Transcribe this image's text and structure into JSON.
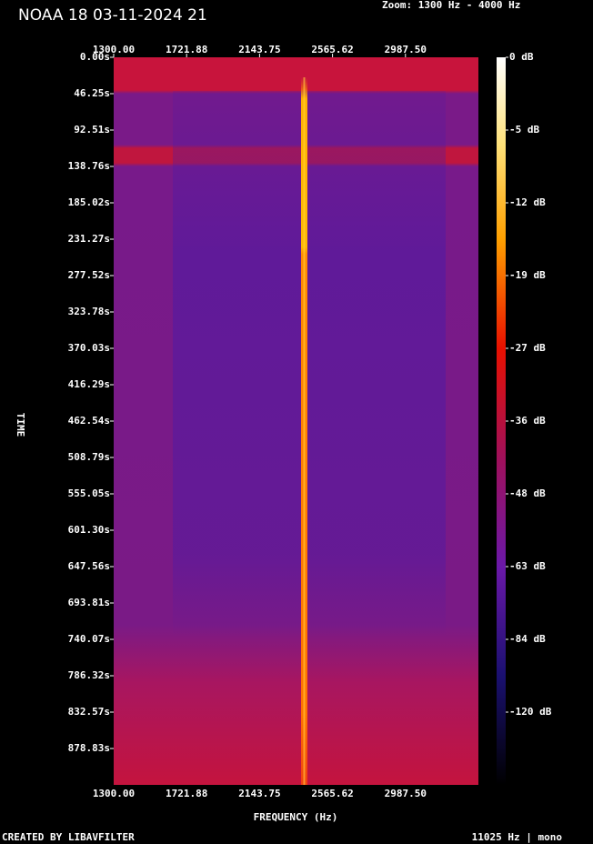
{
  "chart_data": {
    "type": "spectrogram",
    "title": "NOAA 18 03-11-2024 21",
    "subtitle": "Zoom: 1300 Hz - 4000 Hz",
    "x_label": "FREQUENCY (Hz)",
    "y_label": "TIME",
    "footer_left": "CREATED BY LIBAVFILTER",
    "footer_right": "11025 Hz | mono",
    "xlim": [
      1300,
      3409.375
    ],
    "xticks": [
      {
        "value": 1300,
        "label": "1300.00"
      },
      {
        "value": 1721.88,
        "label": "1721.88"
      },
      {
        "value": 2143.75,
        "label": "2143.75"
      },
      {
        "value": 2565.62,
        "label": "2565.62"
      },
      {
        "value": 2987.5,
        "label": "2987.50"
      }
    ],
    "ylim": [
      0,
      925.08
    ],
    "yticks": [
      {
        "value": 0,
        "label": "0.00s"
      },
      {
        "value": 46.25,
        "label": "46.25s"
      },
      {
        "value": 92.51,
        "label": "92.51s"
      },
      {
        "value": 138.76,
        "label": "138.76s"
      },
      {
        "value": 185.02,
        "label": "185.02s"
      },
      {
        "value": 231.27,
        "label": "231.27s"
      },
      {
        "value": 277.52,
        "label": "277.52s"
      },
      {
        "value": 323.78,
        "label": "323.78s"
      },
      {
        "value": 370.03,
        "label": "370.03s"
      },
      {
        "value": 416.29,
        "label": "416.29s"
      },
      {
        "value": 462.54,
        "label": "462.54s"
      },
      {
        "value": 508.79,
        "label": "508.79s"
      },
      {
        "value": 555.05,
        "label": "555.05s"
      },
      {
        "value": 601.3,
        "label": "601.30s"
      },
      {
        "value": 647.56,
        "label": "647.56s"
      },
      {
        "value": 693.81,
        "label": "693.81s"
      },
      {
        "value": 740.07,
        "label": "740.07s"
      },
      {
        "value": 786.32,
        "label": "786.32s"
      },
      {
        "value": 832.57,
        "label": "832.57s"
      },
      {
        "value": 878.83,
        "label": "878.83s"
      }
    ],
    "colorbar_ticks": [
      {
        "value": 0,
        "label": "0 dB"
      },
      {
        "value": -5,
        "label": "-5 dB"
      },
      {
        "value": -12,
        "label": "-12 dB"
      },
      {
        "value": -19,
        "label": "-19 dB"
      },
      {
        "value": -27,
        "label": "-27 dB"
      },
      {
        "value": -36,
        "label": "-36 dB"
      },
      {
        "value": -48,
        "label": "-48 dB"
      },
      {
        "value": -63,
        "label": "-63 dB"
      },
      {
        "value": -84,
        "label": "-84 dB"
      },
      {
        "value": -120,
        "label": "-120 dB"
      }
    ]
  }
}
